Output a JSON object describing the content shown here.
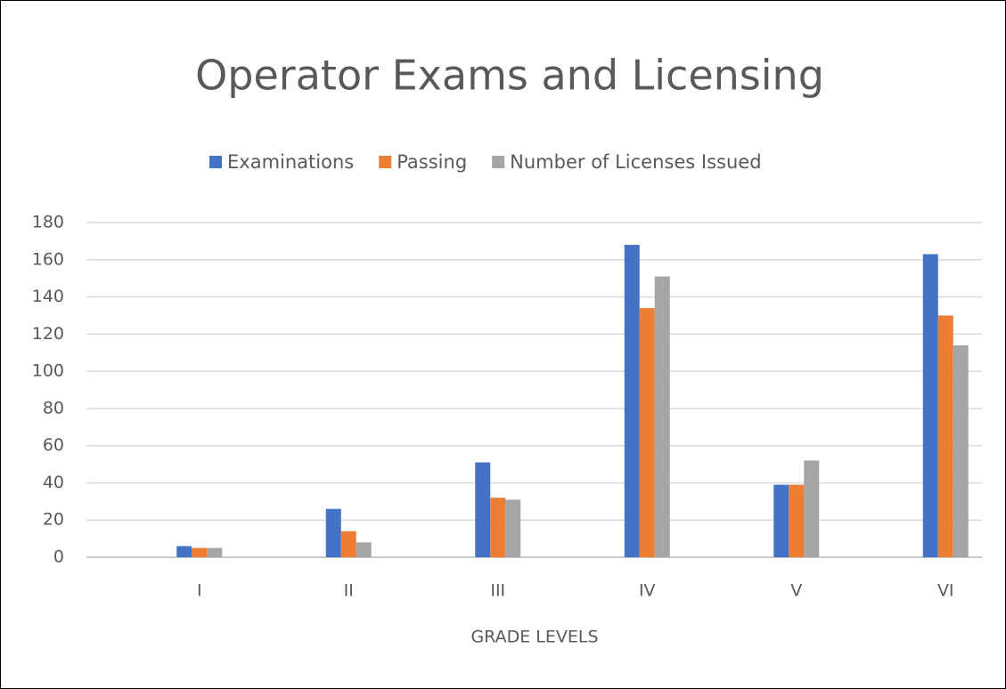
{
  "chart_data": {
    "type": "bar",
    "title": "Operator Exams and Licensing",
    "x_label": "GRADE LEVELS",
    "categories": [
      "I",
      "II",
      "III",
      "IV",
      "V",
      "VI"
    ],
    "series": [
      {
        "name": "Examinations",
        "color": "#4472c4",
        "values": [
          6,
          26,
          51,
          168,
          39,
          163
        ]
      },
      {
        "name": "Passing",
        "color": "#ed7d31",
        "values": [
          5,
          14,
          32,
          134,
          39,
          130
        ]
      },
      {
        "name": "Number of Licenses Issued",
        "color": "#a5a5a5",
        "values": [
          5,
          8,
          31,
          151,
          52,
          114
        ]
      }
    ],
    "ylim": [
      0,
      180
    ],
    "yticks": [
      0,
      20,
      40,
      60,
      80,
      100,
      120,
      140,
      160,
      180
    ],
    "grid": true,
    "legend": "top"
  }
}
